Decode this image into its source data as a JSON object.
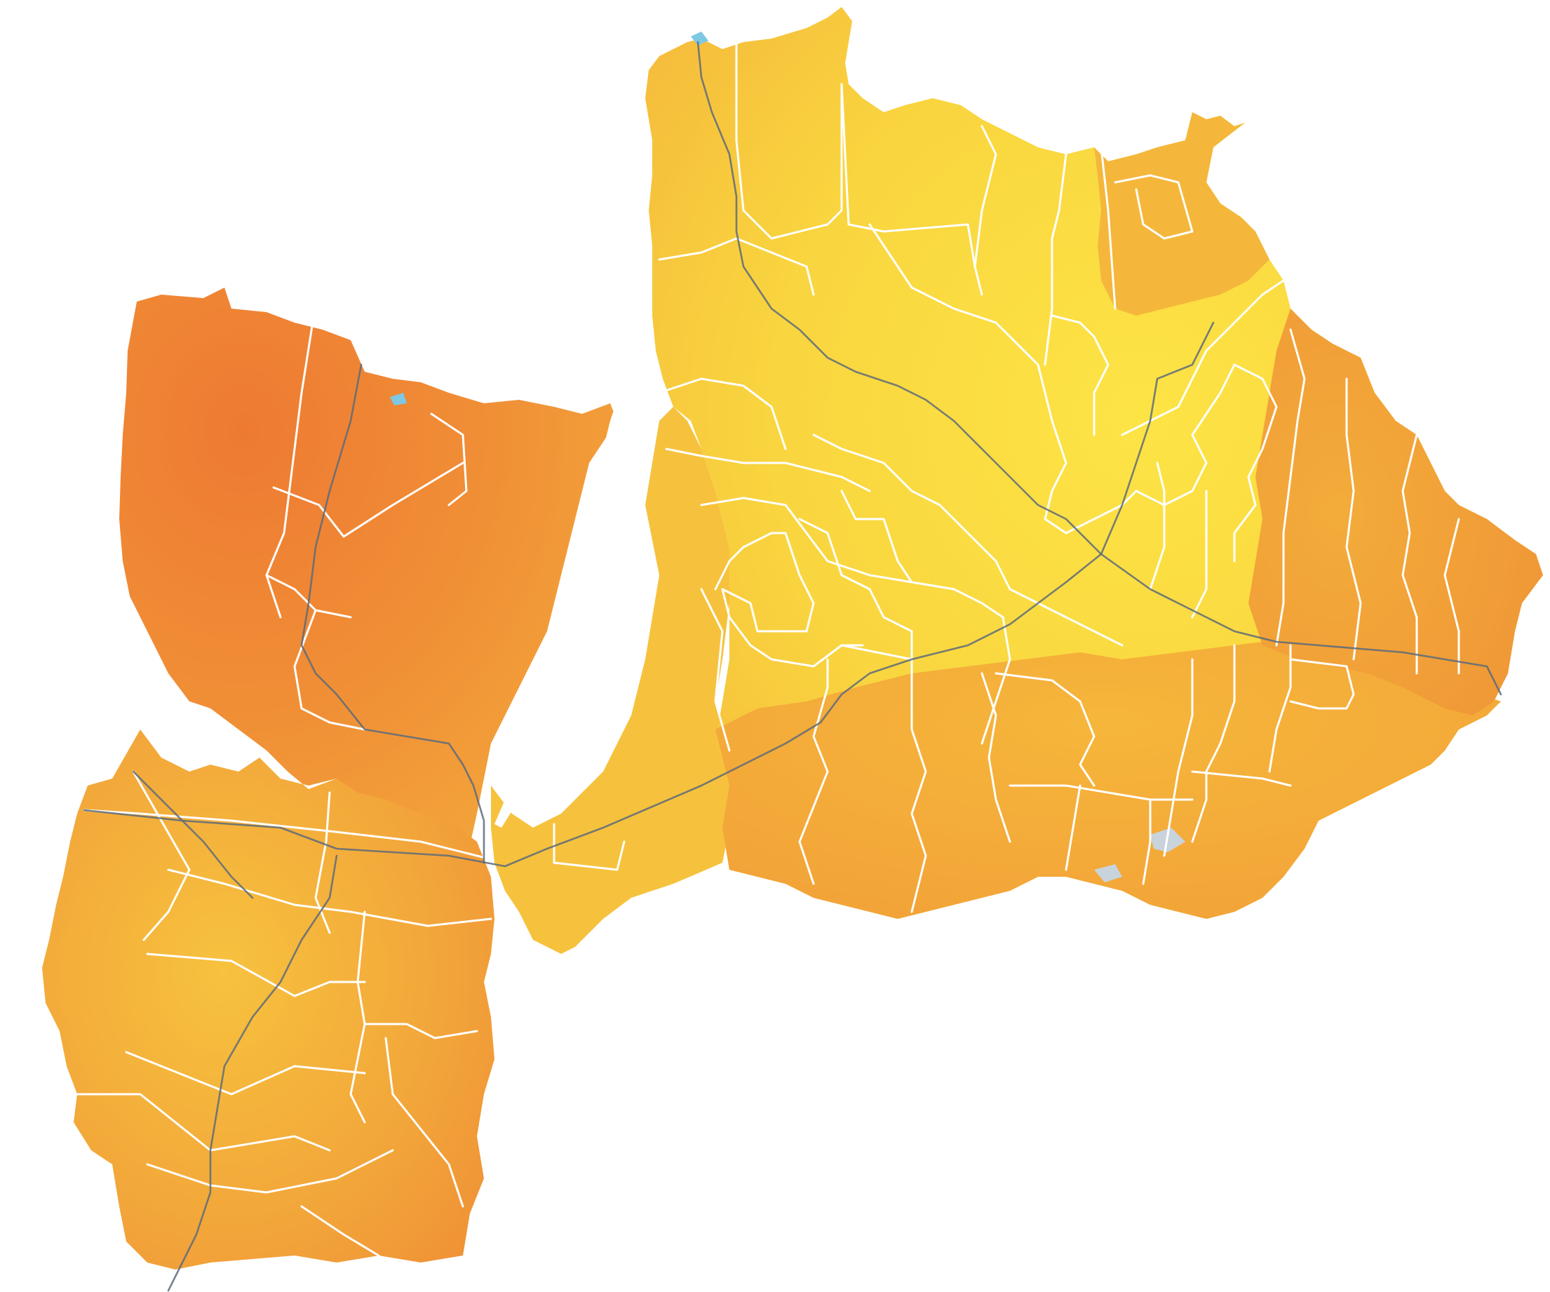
{
  "map": {
    "fill_colors": {
      "west_region": "#ef8a36",
      "west_region_light": "#f3a33c",
      "central_region": "#f5b33b",
      "east_region": "#f8d040",
      "east_region_bright": "#fbe243",
      "south_region": "#f3a53c",
      "boundary_line": "#ffffff",
      "route_line": "#5d6b7a",
      "water_blue": "#7ec8e3",
      "water_grey": "#c9d3dc"
    },
    "legend": null,
    "labels": []
  }
}
